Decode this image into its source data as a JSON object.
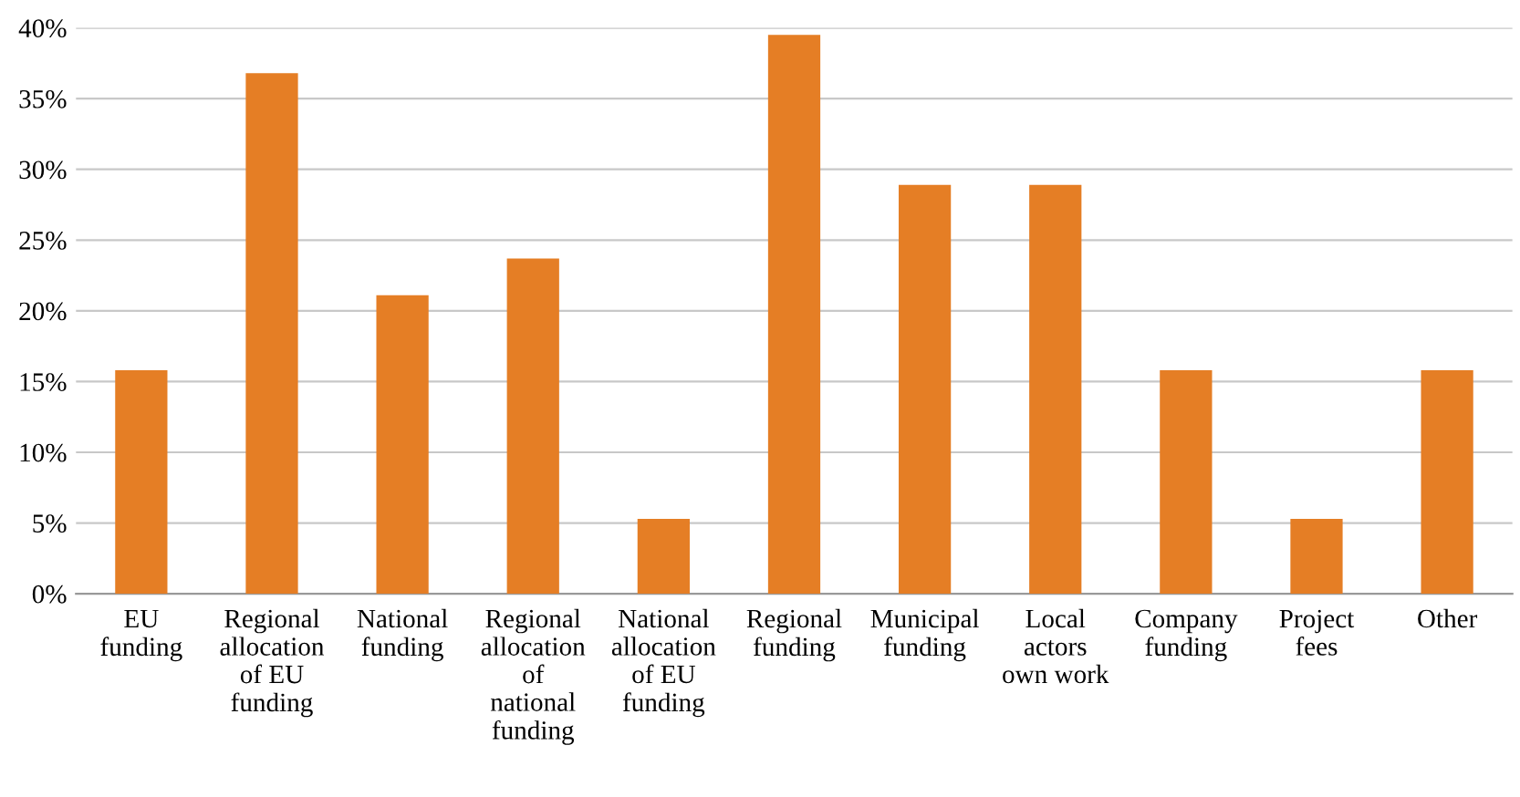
{
  "chart_data": {
    "type": "bar",
    "categories": [
      "EU\nfunding",
      "Regional\nallocation\nof EU\nfunding",
      "National\nfunding",
      "Regional\nallocation\nof\nnational\nfunding",
      "National\nallocation\nof EU\nfunding",
      "Regional\nfunding",
      "Municipal\nfunding",
      "Local\nactors\nown work",
      "Company\nfunding",
      "Project\nfees",
      "Other"
    ],
    "values": [
      15.8,
      36.8,
      21.1,
      23.7,
      5.3,
      39.5,
      28.9,
      28.9,
      15.8,
      5.3,
      15.8
    ],
    "color": "#e57e25",
    "ylim": [
      0,
      40
    ],
    "yticks": [
      {
        "value": 0,
        "label": "0%"
      },
      {
        "value": 5,
        "label": "5%"
      },
      {
        "value": 10,
        "label": "10%"
      },
      {
        "value": 15,
        "label": "15%"
      },
      {
        "value": 20,
        "label": "20%"
      },
      {
        "value": 25,
        "label": "25%"
      },
      {
        "value": 30,
        "label": "30%"
      },
      {
        "value": 35,
        "label": "35%"
      },
      {
        "value": 40,
        "label": "40%"
      }
    ],
    "grid": "y"
  }
}
